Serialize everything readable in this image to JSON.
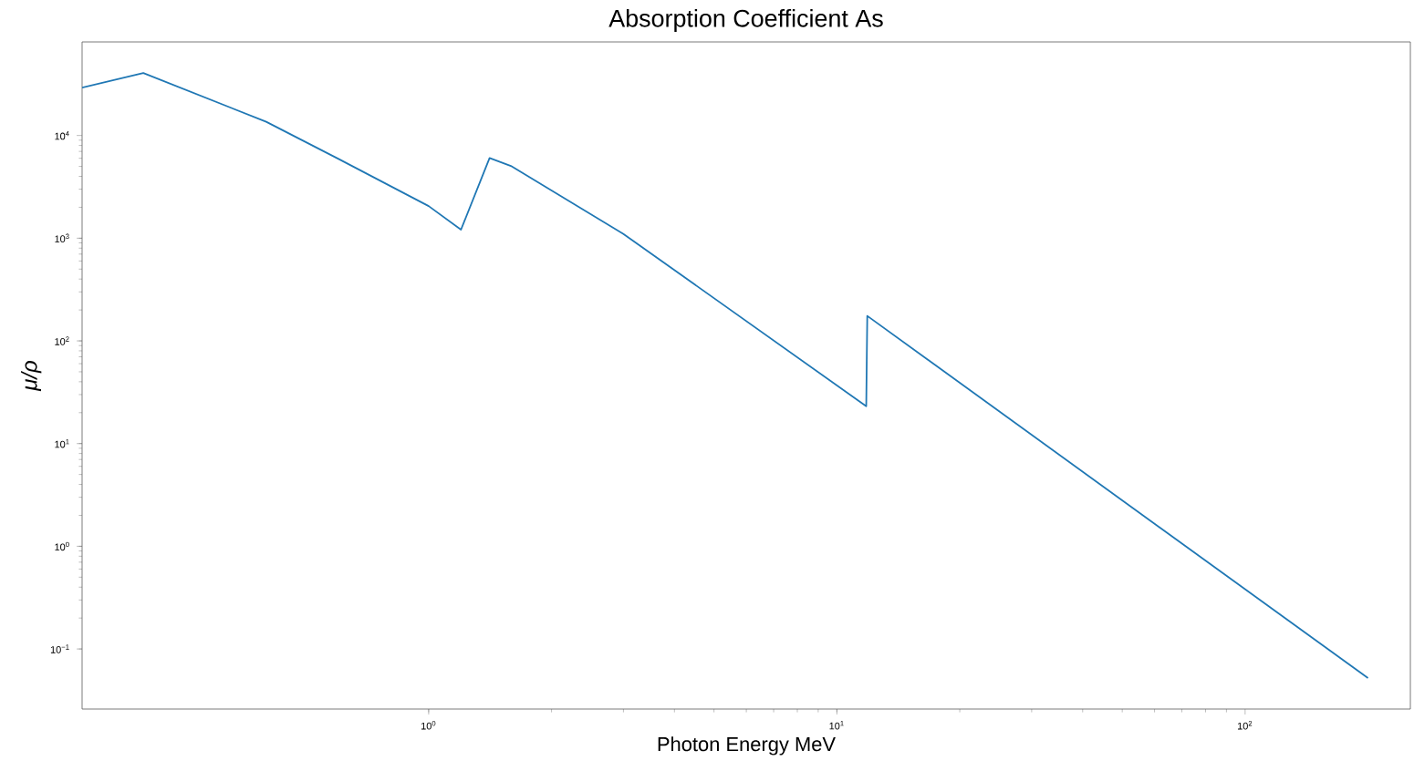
{
  "chart_data": {
    "type": "line",
    "title": "Absorption Coefficient As",
    "xlabel": "Photon Energy MeV",
    "ylabel": "μ/ρ",
    "log": "xy",
    "color": "#1f77b4",
    "x": [
      0.1416,
      0.2,
      0.4,
      0.6,
      1.0,
      1.2,
      1.41,
      1.59,
      3.0,
      11.8,
      11.87,
      200
    ],
    "values": [
      29300,
      40600,
      13600,
      5950,
      2055,
      1210,
      6030,
      5050,
      1100,
      23.1,
      175,
      0.052
    ],
    "xlim": [
      0.1416,
      254
    ],
    "ylim": [
      0.026,
      81500
    ],
    "xticks": [
      {
        "value": 1,
        "label": "10$^{0}$"
      },
      {
        "value": 10,
        "label": "10$^{1}$"
      },
      {
        "value": 100,
        "label": "10$^{2}$"
      }
    ],
    "yticks": [
      {
        "value": 0.1,
        "label": "10$^{−1}$"
      },
      {
        "value": 1,
        "label": "10$^{0}$"
      },
      {
        "value": 10,
        "label": "10$^{1}$"
      },
      {
        "value": 100,
        "label": "10$^{2}$"
      },
      {
        "value": 1000,
        "label": "10$^{3}$"
      },
      {
        "value": 10000,
        "label": "10$^{4}$"
      }
    ]
  }
}
